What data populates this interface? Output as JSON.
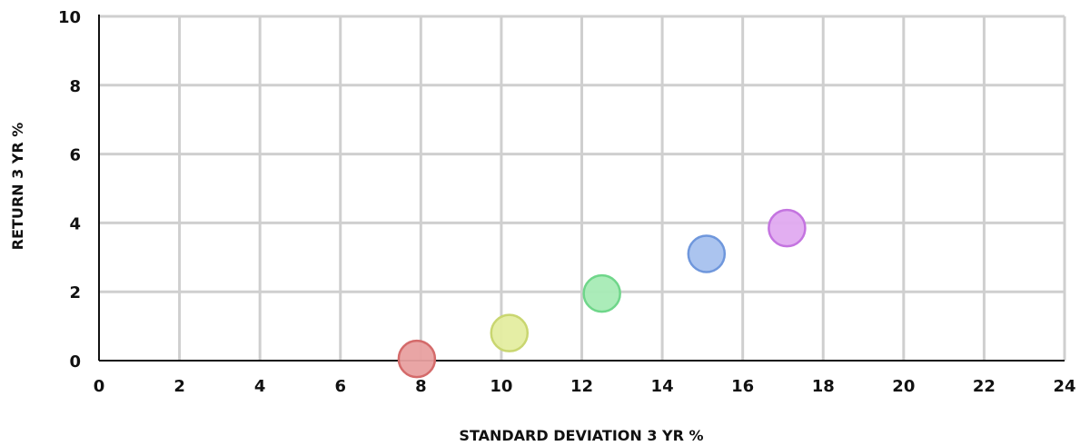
{
  "chart_data": {
    "type": "scatter",
    "title": "",
    "xlabel": "STANDARD DEVIATION 3 YR %",
    "ylabel": "RETURN 3 YR %",
    "xlim": [
      0,
      24
    ],
    "ylim": [
      0,
      10
    ],
    "x_ticks": [
      "0",
      "2",
      "4",
      "6",
      "8",
      "10",
      "12",
      "14",
      "16",
      "18",
      "20",
      "22",
      "24"
    ],
    "y_ticks": [
      "0",
      "2",
      "4",
      "6",
      "8",
      "10"
    ],
    "grid": true,
    "legend": "none",
    "points": [
      {
        "x": 7.9,
        "y": 0.05,
        "color": "#e8a0a0",
        "stroke": "#d46a6a"
      },
      {
        "x": 10.2,
        "y": 0.8,
        "color": "#e4eda0",
        "stroke": "#c9d670"
      },
      {
        "x": 12.5,
        "y": 1.95,
        "color": "#a6ebb5",
        "stroke": "#6fd68a"
      },
      {
        "x": 15.1,
        "y": 3.1,
        "color": "#a7c1ee",
        "stroke": "#6f97dc"
      },
      {
        "x": 17.1,
        "y": 3.85,
        "color": "#e0aaf0",
        "stroke": "#c474e0"
      }
    ]
  }
}
